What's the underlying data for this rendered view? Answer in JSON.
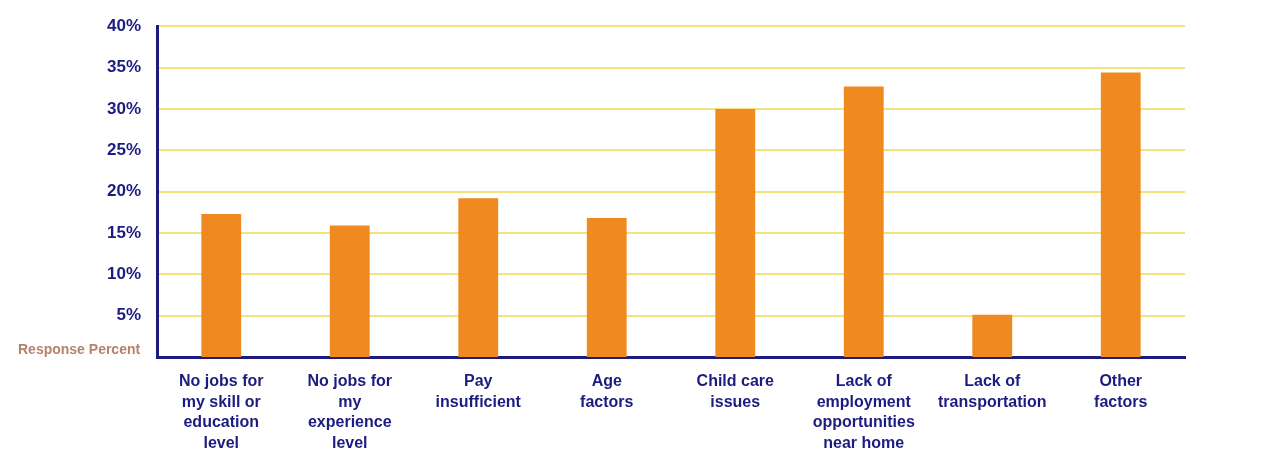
{
  "chart_data": {
    "type": "bar",
    "ylabel": "Response Percent",
    "categories": [
      "No jobs for\nmy skill or\neducation\nlevel",
      "No jobs for\nmy\nexperience\nlevel",
      "Pay\ninsufficient",
      "Age\nfactors",
      "Child care\nissues",
      "Lack of\nemployment\nopportunities\nnear home",
      "Lack of\ntransportation",
      "Other\nfactors"
    ],
    "values": [
      17.3,
      15.9,
      19.2,
      16.8,
      30.0,
      32.7,
      5.1,
      34.4
    ],
    "color": "#ee8a1f",
    "ylim": [
      0,
      40
    ],
    "yticks": [
      {
        "value": 5,
        "label": "5%"
      },
      {
        "value": 10,
        "label": "10%"
      },
      {
        "value": 15,
        "label": "15%"
      },
      {
        "value": 20,
        "label": "20%"
      },
      {
        "value": 25,
        "label": "25%"
      },
      {
        "value": 30,
        "label": "30%"
      },
      {
        "value": 35,
        "label": "35%"
      },
      {
        "value": 40,
        "label": "40%"
      }
    ],
    "grid": "y",
    "legend": false
  }
}
